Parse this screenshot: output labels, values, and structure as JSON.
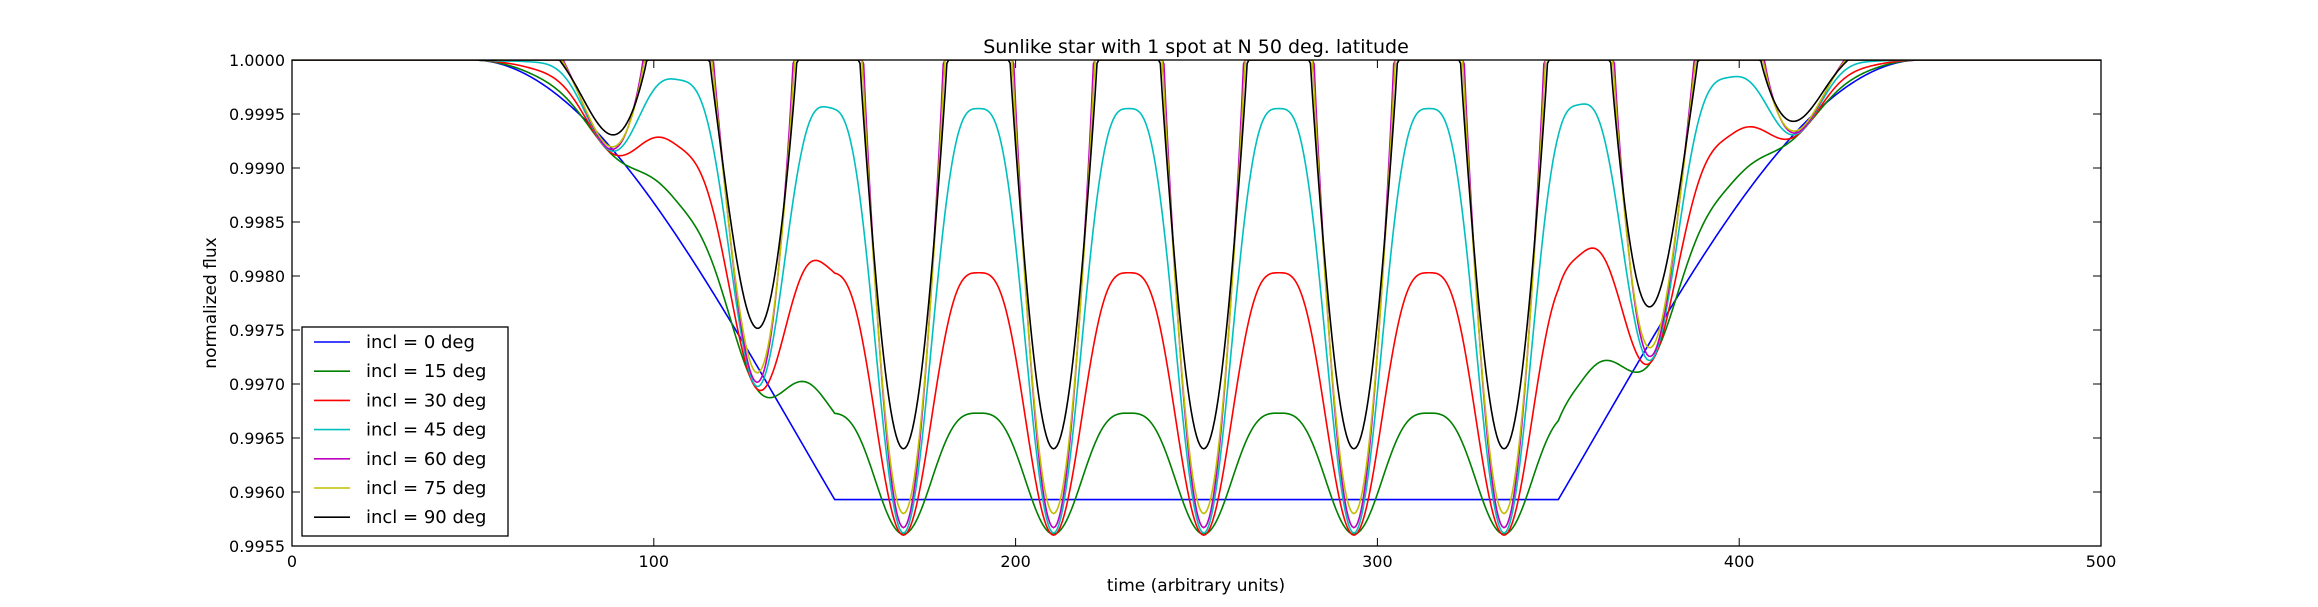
{
  "chart_data": {
    "type": "line",
    "title": "Sunlike star with 1 spot at N 50 deg. latitude",
    "xlabel": "time (arbitrary units)",
    "ylabel": "normalized flux",
    "xlim": [
      0,
      500
    ],
    "ylim": [
      0.9955,
      1.0
    ],
    "xticks": [
      0,
      100,
      200,
      300,
      400,
      500
    ],
    "xtick_labels": [
      "0",
      "100",
      "200",
      "300",
      "400",
      "500"
    ],
    "yticks": [
      0.9955,
      0.996,
      0.9965,
      0.997,
      0.9975,
      0.998,
      0.9985,
      0.999,
      0.9995,
      1.0
    ],
    "ytick_labels": [
      "0.9955",
      "0.9960",
      "0.9965",
      "0.9970",
      "0.9975",
      "0.9980",
      "0.9985",
      "0.9990",
      "0.9995",
      "1.0000"
    ],
    "grid": false,
    "legend_position": "lower-left",
    "model": {
      "visibility_start": 50,
      "visibility_end": 450,
      "full_size_start": 150,
      "full_size_end": 350,
      "rotation_period": 41.5,
      "first_crossing": 169,
      "max_depth": 0.00407,
      "latitude_deg": 50
    },
    "series": [
      {
        "name": "incl = 0 deg",
        "label": "incl = 0 deg",
        "inclination": 0,
        "color": "#0000ff",
        "spot_minimum": 0.99593,
        "between_spot_maximum": 0.99593
      },
      {
        "name": "incl = 15 deg",
        "label": "incl = 15 deg",
        "inclination": 15,
        "color": "#008000",
        "spot_minimum": 0.99561,
        "between_spot_maximum": 0.99673
      },
      {
        "name": "incl = 30 deg",
        "label": "incl = 30 deg",
        "inclination": 30,
        "color": "#ff0000",
        "spot_minimum": 0.9956,
        "between_spot_maximum": 0.99803
      },
      {
        "name": "incl = 45 deg",
        "label": "incl = 45 deg",
        "inclination": 45,
        "color": "#00bfbf",
        "spot_minimum": 0.99562,
        "between_spot_maximum": 0.99955
      },
      {
        "name": "incl = 60 deg",
        "label": "incl = 60 deg",
        "inclination": 60,
        "color": "#bf00bf",
        "spot_minimum": 0.99567,
        "between_spot_maximum": 1.0
      },
      {
        "name": "incl = 75 deg",
        "label": "incl = 75 deg",
        "inclination": 75,
        "color": "#bfbf00",
        "spot_minimum": 0.9958,
        "between_spot_maximum": 1.0
      },
      {
        "name": "incl = 90 deg",
        "label": "incl = 90 deg",
        "inclination": 90,
        "color": "#000000",
        "spot_minimum": 0.9964,
        "between_spot_maximum": 1.0
      }
    ]
  }
}
